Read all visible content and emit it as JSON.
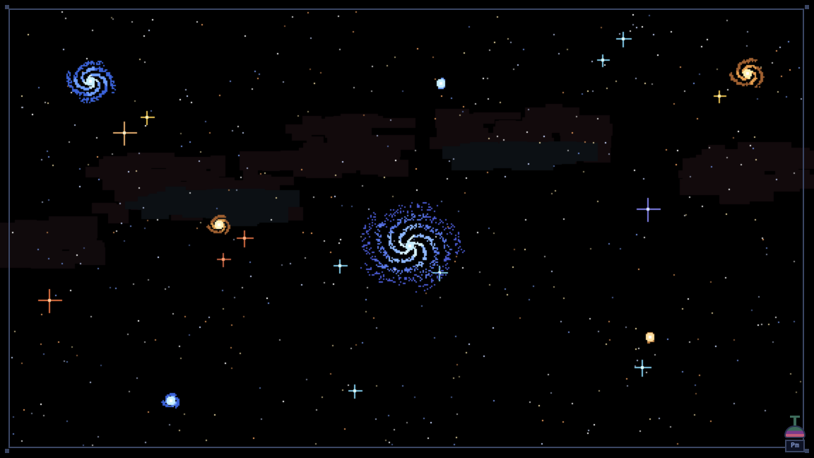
{
  "scene": {
    "background": "#000000",
    "frame_color": "#3a4563"
  },
  "device": {
    "label": "Pm",
    "icon": "planet-device-icon"
  }
}
